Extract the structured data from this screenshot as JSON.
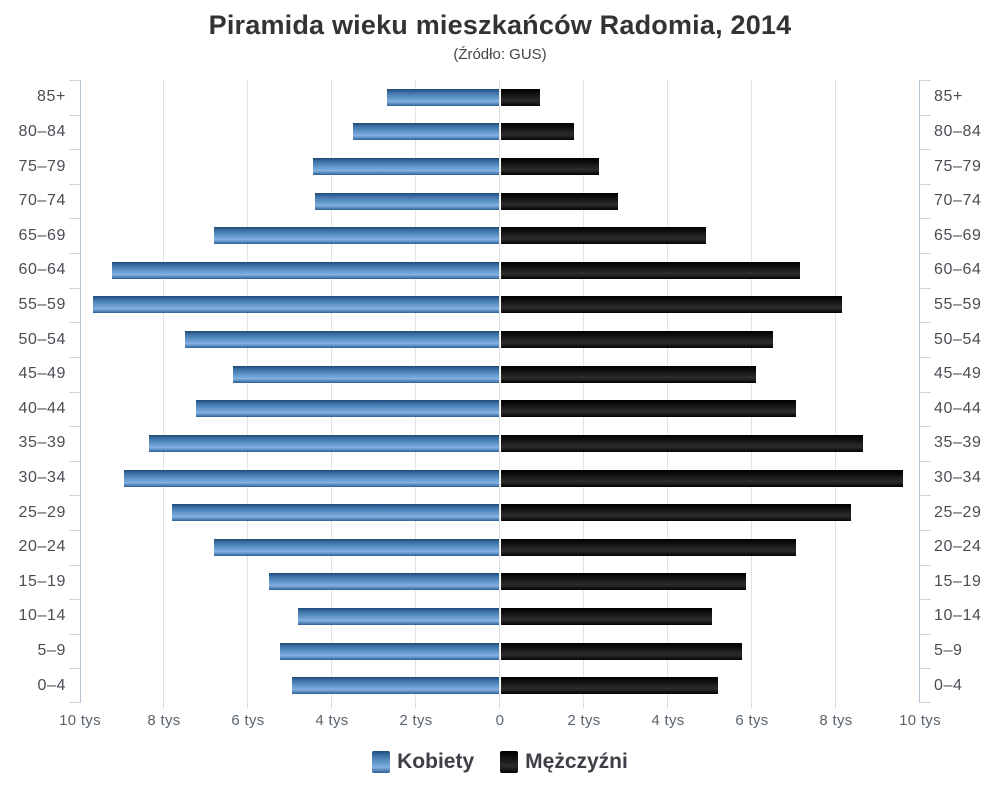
{
  "title": "Piramida wieku mieszkańców Radomia, 2014",
  "subtitle": "(Źródło: GUS)",
  "legend": {
    "women_label": "Kobiety",
    "men_label": "Mężczyźni"
  },
  "colors": {
    "women_bar": "#4a7fb4",
    "men_bar": "#141414",
    "gridline": "#e2e2e2",
    "axis_line": "#b9c6d3",
    "title_text": "#333333",
    "age_label_text": "#4c4c54",
    "x_label_text": "#5a646e"
  },
  "chart_data": {
    "type": "bar",
    "subtype": "population-pyramid",
    "title": "Piramida wieku mieszkańców Radomia, 2014",
    "subtitle": "(Źródło: GUS)",
    "unit": "tys (thousands of people)",
    "grid": true,
    "legend_position": "bottom",
    "categories_top_to_bottom": [
      "85+",
      "80–84",
      "75–79",
      "70–74",
      "65–69",
      "60–64",
      "55–59",
      "50–54",
      "45–49",
      "40–44",
      "35–39",
      "30–34",
      "25–29",
      "20–24",
      "15–19",
      "10–14",
      "5–9",
      "0–4"
    ],
    "series": [
      {
        "name": "Kobiety",
        "side": "left",
        "color": "#4a7fb4",
        "values_tys": [
          2.7,
          3.5,
          4.45,
          4.4,
          6.8,
          9.25,
          9.7,
          7.5,
          6.35,
          7.25,
          8.35,
          8.95,
          7.8,
          6.8,
          5.5,
          4.8,
          5.25,
          4.95
        ]
      },
      {
        "name": "Mężczyźni",
        "side": "right",
        "color": "#141414",
        "values_tys": [
          0.95,
          1.75,
          2.35,
          2.8,
          4.9,
          7.15,
          8.15,
          6.5,
          6.1,
          7.05,
          8.65,
          9.6,
          8.35,
          7.05,
          5.85,
          5.05,
          5.75,
          5.2
        ]
      }
    ],
    "x_axis": {
      "range_tys": [
        -10,
        10
      ],
      "tick_step_tys": 2,
      "tick_labels": [
        "10 tys",
        "8 tys",
        "6 tys",
        "4 tys",
        "2 tys",
        "0",
        "2 tys",
        "4 tys",
        "6 tys",
        "8 tys",
        "10 tys"
      ]
    }
  }
}
